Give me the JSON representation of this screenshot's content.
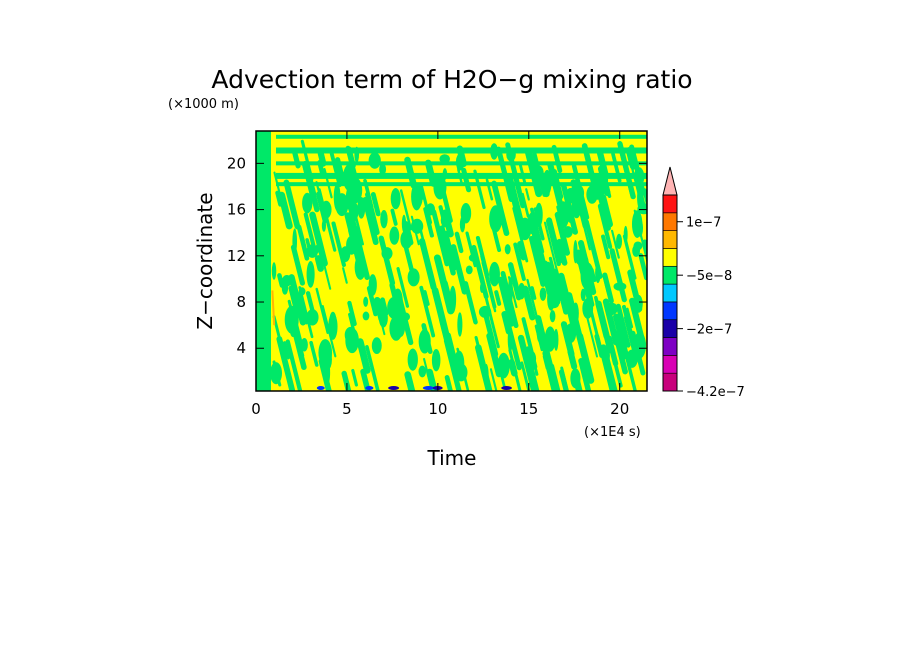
{
  "chart_data": {
    "type": "heatmap",
    "title": "Advection term of H2O−g mixing ratio",
    "xlabel": "Time",
    "ylabel": "Z−coordinate",
    "x_unit": "(×1E4 s)",
    "y_unit": "(×1000 m)",
    "xlim": [
      0,
      21.5
    ],
    "ylim": [
      0.3,
      22.8
    ],
    "x_ticks": [
      0,
      5,
      10,
      15,
      20
    ],
    "y_ticks": [
      4,
      8,
      12,
      16,
      20
    ],
    "x_tick_labels": [
      "0",
      "5",
      "10",
      "15",
      "20"
    ],
    "y_tick_labels": [
      "4",
      "8",
      "12",
      "16",
      "20"
    ],
    "colorbar": {
      "labels": [
        "1e−7",
        "−5e−8",
        "−2e−7",
        "−4.2e−7"
      ],
      "label_values": [
        1e-07,
        -5e-08,
        -2e-07,
        -4.2e-07
      ],
      "colors": [
        "#c8007c",
        "#d800b4",
        "#7e00c4",
        "#1a00a8",
        "#0038ff",
        "#00c8ff",
        "#00e868",
        "#ffff00",
        "#ffb800",
        "#ff7800",
        "#ff1414"
      ],
      "extend_color": "#ffb4b4",
      "extend": "max"
    },
    "field": {
      "description_dominant": "green (−5e−8 to 0) and yellow (0 to 5e−8) bands dominate",
      "dominant_colors": [
        "#00e868",
        "#ffff00"
      ],
      "minor_colors": [
        "#ffb800",
        "#0038ff",
        "#1a00a8"
      ]
    }
  }
}
